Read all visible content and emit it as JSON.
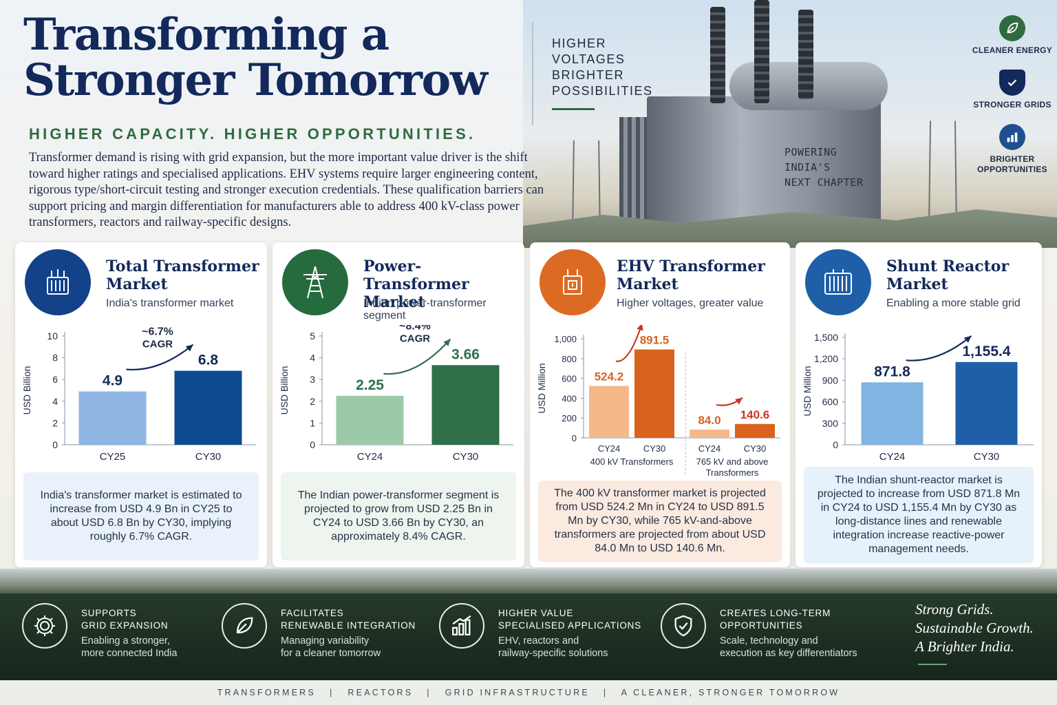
{
  "header": {
    "title_line1": "Transforming a",
    "title_line2": "Stronger Tomorrow",
    "subtitle": "HIGHER CAPACITY. HIGHER OPPORTUNITIES.",
    "tagline": [
      "HIGHER",
      "VOLTAGES",
      "BRIGHTER",
      "POSSIBILITIES"
    ],
    "intro": "Transformer demand is rising with grid expansion, but the more important value driver is the shift toward higher ratings and specialised applications. EHV systems require larger engineering content, rigorous type/short-circuit testing and stronger execution credentials. These qualification barriers can support pricing and margin differentiation for manufacturers able to address 400 kV-class power transformers, reactors and railway-specific designs.",
    "plate": [
      "POWERING",
      "INDIA'S",
      "NEXT CHAPTER"
    ]
  },
  "badges": [
    {
      "label": "CLEANER ENERGY",
      "icon": "leaf-icon"
    },
    {
      "label": "STRONGER GRIDS",
      "icon": "shield-check-icon"
    },
    {
      "label": "BRIGHTER OPPORTUNITIES",
      "icon": "bar-chart-icon"
    }
  ],
  "colors": {
    "navy": "#13295b",
    "green": "#2f6b3f",
    "orange": "#d9621f",
    "blue": "#1f5fa8",
    "total_light": "#8fb6e3",
    "total_dark": "#0f4b91",
    "pt_light": "#9ccaa8",
    "pt_dark": "#2f6f4a",
    "ehv_light": "#f4b98a",
    "ehv_dark": "#d9621f",
    "ehv_red": "#c8381f",
    "shunt_light": "#7fb5e0",
    "shunt_dark": "#1f5fa8"
  },
  "cards": [
    {
      "title": "Total Transformer Market",
      "subtitle": "India's transformer market",
      "note": "India's transformer market is estimated to increase from USD 4.9 Bn in CY25 to about USD 6.8 Bn by CY30, implying roughly 6.7% CAGR."
    },
    {
      "title": "Power-Transformer Market",
      "subtitle": "Indian power-transformer segment",
      "note": "The Indian power-transformer segment is projected to grow from USD 2.25 Bn in CY24 to USD 3.66 Bn by CY30, an approximately 8.4% CAGR."
    },
    {
      "title": "EHV Transformer Market",
      "subtitle": "Higher voltages, greater value",
      "note": "The 400 kV transformer market is projected from USD 524.2 Mn in CY24 to USD 891.5 Mn by CY30, while 765 kV-and-above transformers are projected from about USD 84.0 Mn to USD 140.6 Mn."
    },
    {
      "title": "Shunt Reactor Market",
      "subtitle": "Enabling a more stable grid",
      "note": "The Indian shunt-reactor market is projected to increase from USD 871.8 Mn in CY24 to USD 1,155.4 Mn by CY30 as long-distance lines and renewable integration increase reactive-power management needs."
    }
  ],
  "chart_data": [
    {
      "type": "bar",
      "categories": [
        "CY25",
        "CY30"
      ],
      "values": [
        4.9,
        6.8
      ],
      "value_labels": [
        "4.9",
        "6.8"
      ],
      "ylabel": "USD Billion",
      "ylim": [
        0,
        10
      ],
      "yticks": [
        0,
        2,
        4,
        6,
        8,
        10
      ],
      "ytick_labels": [
        "0",
        "2",
        "4",
        "6",
        "8",
        "10"
      ],
      "annotation": [
        "~6.7%",
        "CAGR"
      ]
    },
    {
      "type": "bar",
      "categories": [
        "CY24",
        "CY30"
      ],
      "values": [
        2.25,
        3.66
      ],
      "value_labels": [
        "2.25",
        "3.66"
      ],
      "ylabel": "USD Billion",
      "ylim": [
        0,
        5
      ],
      "yticks": [
        0,
        1,
        2,
        3,
        4,
        5
      ],
      "ytick_labels": [
        "0",
        "1",
        "2",
        "3",
        "4",
        "5"
      ],
      "annotation": [
        "~8.4%",
        "CAGR"
      ]
    },
    {
      "type": "bar",
      "ylabel": "USD Million",
      "ylim": [
        0,
        1000
      ],
      "yticks": [
        0,
        200,
        400,
        600,
        800,
        1000
      ],
      "ytick_labels": [
        "0",
        "200",
        "400",
        "600",
        "800",
        "1,000"
      ],
      "groups": [
        {
          "label": [
            "400 kV Transformers"
          ],
          "categories": [
            "CY24",
            "CY30"
          ],
          "values": [
            524.2,
            891.5
          ],
          "value_labels": [
            "524.2",
            "891.5"
          ]
        },
        {
          "label": [
            "765 kV and above",
            "Transformers"
          ],
          "categories": [
            "CY24",
            "CY30"
          ],
          "values": [
            84.0,
            140.6
          ],
          "value_labels": [
            "84.0",
            "140.6"
          ]
        }
      ]
    },
    {
      "type": "bar",
      "categories": [
        "CY24",
        "CY30"
      ],
      "values": [
        871.8,
        1155.4
      ],
      "value_labels": [
        "871.8",
        "1,155.4"
      ],
      "ylabel": "USD Million",
      "ylim": [
        0,
        1500
      ],
      "yticks": [
        0,
        300,
        600,
        900,
        1200,
        1500
      ],
      "ytick_labels": [
        "0",
        "300",
        "600",
        "900",
        "1,200",
        "1,500"
      ]
    }
  ],
  "features": [
    {
      "head": [
        "SUPPORTS",
        "GRID EXPANSION"
      ],
      "desc": [
        "Enabling a stronger,",
        "more connected India"
      ],
      "icon": "gear-icon"
    },
    {
      "head": [
        "FACILITATES",
        "RENEWABLE INTEGRATION"
      ],
      "desc": [
        "Managing variability",
        "for a cleaner tomorrow"
      ],
      "icon": "leaf-icon"
    },
    {
      "head": [
        "HIGHER VALUE",
        "SPECIALISED APPLICATIONS"
      ],
      "desc": [
        "EHV, reactors and",
        "railway-specific solutions"
      ],
      "icon": "growth-chart-icon"
    },
    {
      "head": [
        "CREATES LONG-TERM",
        "OPPORTUNITIES"
      ],
      "desc": [
        "Scale, technology and",
        "execution as key differentiators"
      ],
      "icon": "shield-check-icon"
    }
  ],
  "motto": [
    "Strong Grids.",
    "Sustainable Growth.",
    "A Brighter India."
  ],
  "footer": "TRANSFORMERS   |   REACTORS   |   GRID INFRASTRUCTURE   |   A CLEANER, STRONGER TOMORROW"
}
